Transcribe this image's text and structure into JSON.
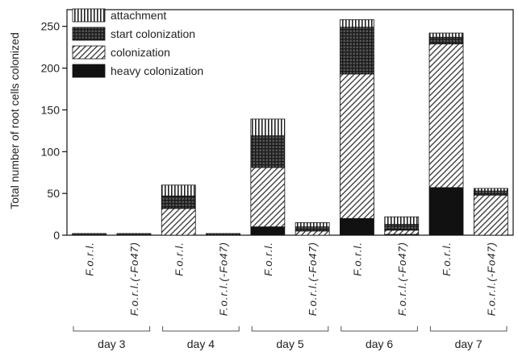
{
  "chart_data": {
    "type": "bar",
    "stacked": true,
    "ylabel": "Total number of root cells colonized",
    "xlabel": "",
    "ylim": [
      0,
      270
    ],
    "yticks": [
      0,
      50,
      100,
      150,
      200,
      250
    ],
    "legend_position": "top-left",
    "categories": [
      "F.o.r.l.",
      "F.o.r.l.(-Fo47)",
      "F.o.r.l.",
      "F.o.r.l.(-Fo47)",
      "F.o.r.l.",
      "F.o.r.l.(-Fo47)",
      "F.o.r.l.",
      "F.o.r.l.(-Fo47)",
      "F.o.r.l.",
      "F.o.r.l.(-Fo47)"
    ],
    "groups": [
      {
        "label": "day 3",
        "bars": [
          0,
          1
        ]
      },
      {
        "label": "day 4",
        "bars": [
          2,
          3
        ]
      },
      {
        "label": "day 5",
        "bars": [
          4,
          5
        ]
      },
      {
        "label": "day 6",
        "bars": [
          6,
          7
        ]
      },
      {
        "label": "day 7",
        "bars": [
          8,
          9
        ]
      }
    ],
    "series": [
      {
        "name": "heavy colonization",
        "pattern": "solid-black",
        "values": [
          0,
          0,
          0,
          0,
          10,
          0,
          20,
          1,
          57,
          0
        ]
      },
      {
        "name": "colonization",
        "pattern": "diagonal-hatch",
        "values": [
          0,
          0,
          32,
          0,
          71,
          5,
          173,
          5,
          172,
          48
        ]
      },
      {
        "name": "start colonization",
        "pattern": "dense-grid",
        "values": [
          1,
          1,
          15,
          1,
          38,
          5,
          56,
          7,
          8,
          5
        ]
      },
      {
        "name": "attachment",
        "pattern": "vertical-stripes",
        "values": [
          1,
          1,
          13,
          1,
          20,
          5,
          9,
          9,
          5,
          3
        ]
      }
    ],
    "legend_order": [
      "attachment",
      "start colonization",
      "colonization",
      "heavy colonization"
    ]
  }
}
